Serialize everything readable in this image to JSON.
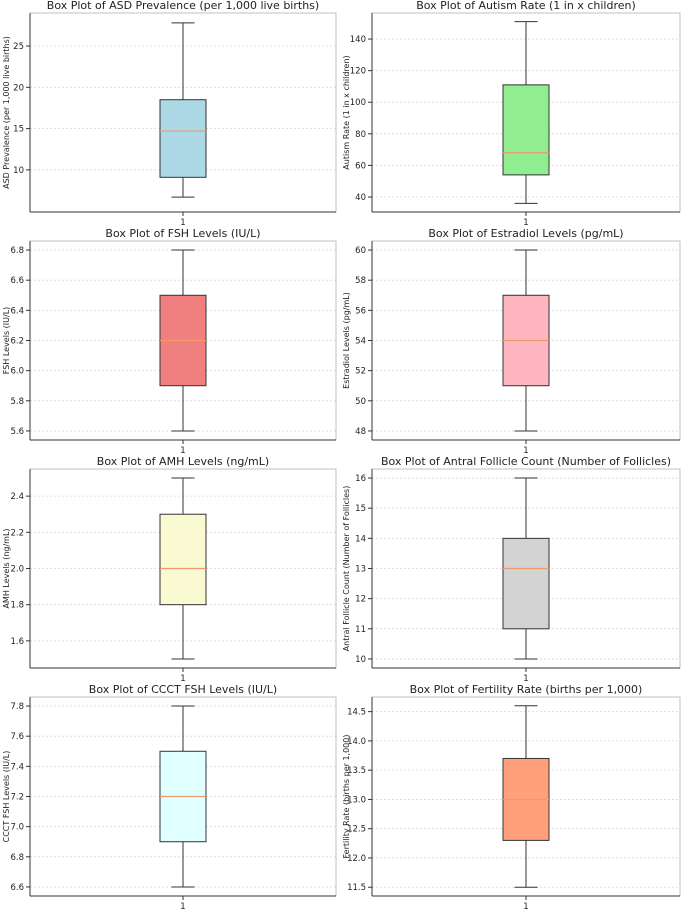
{
  "chart_data": [
    {
      "type": "box",
      "title": "Box Plot of ASD Prevalence (per 1,000 live births)",
      "ylabel": "ASD Prevalence (per 1,000 live births)",
      "xlabel": "",
      "xtick": "1",
      "ylim": [
        4.9,
        29.0
      ],
      "yticks": [
        10,
        15,
        20,
        25
      ],
      "tick_decimals": 0,
      "box": {
        "min": 6.7,
        "q1": 9.1,
        "median": 14.7,
        "q3": 18.5,
        "max": 27.8
      },
      "fill": "#add8e6",
      "median_color": "#f0986a",
      "grid": true
    },
    {
      "type": "box",
      "title": "Box Plot of Autism Rate (1 in x children)",
      "ylabel": "Autism Rate (1 in x children)",
      "xlabel": "",
      "xtick": "1",
      "ylim": [
        30.5,
        156.5
      ],
      "yticks": [
        40,
        60,
        80,
        100,
        120,
        140
      ],
      "tick_decimals": 0,
      "box": {
        "min": 36,
        "q1": 54,
        "median": 68,
        "q3": 111,
        "max": 151
      },
      "fill": "#90ee90",
      "median_color": "#f0986a",
      "grid": true
    },
    {
      "type": "box",
      "title": "Box Plot of FSH Levels (IU/L)",
      "ylabel": "FSH Levels (IU/L)",
      "xlabel": "",
      "xtick": "1",
      "ylim": [
        5.54,
        6.86
      ],
      "yticks": [
        5.6,
        5.8,
        6.0,
        6.2,
        6.4,
        6.6,
        6.8
      ],
      "tick_decimals": 1,
      "box": {
        "min": 5.6,
        "q1": 5.9,
        "median": 6.2,
        "q3": 6.5,
        "max": 6.8
      },
      "fill": "#f08080",
      "median_color": "#f0986a",
      "grid": true
    },
    {
      "type": "box",
      "title": "Box Plot of Estradiol Levels (pg/mL)",
      "ylabel": "Estradiol Levels (pg/mL)",
      "xlabel": "",
      "xtick": "1",
      "ylim": [
        47.4,
        60.6
      ],
      "yticks": [
        48,
        50,
        52,
        54,
        56,
        58,
        60
      ],
      "tick_decimals": 0,
      "box": {
        "min": 48,
        "q1": 51,
        "median": 54,
        "q3": 57,
        "max": 60
      },
      "fill": "#ffb6c1",
      "median_color": "#f0986a",
      "grid": true
    },
    {
      "type": "box",
      "title": "Box Plot of AMH Levels (ng/mL)",
      "ylabel": "AMH Levels (ng/mL)",
      "xlabel": "",
      "xtick": "1",
      "ylim": [
        1.45,
        2.55
      ],
      "yticks": [
        1.6,
        1.8,
        2.0,
        2.2,
        2.4
      ],
      "tick_decimals": 1,
      "box": {
        "min": 1.5,
        "q1": 1.8,
        "median": 2.0,
        "q3": 2.3,
        "max": 2.5
      },
      "fill": "#fafad2",
      "median_color": "#f0986a",
      "grid": true
    },
    {
      "type": "box",
      "title": "Box Plot of Antral Follicle Count (Number of Follicles)",
      "ylabel": "Antral Follicle Count (Number of Follicles)",
      "xlabel": "",
      "xtick": "1",
      "ylim": [
        9.7,
        16.3
      ],
      "yticks": [
        10,
        11,
        12,
        13,
        14,
        15,
        16
      ],
      "tick_decimals": 0,
      "box": {
        "min": 10,
        "q1": 11,
        "median": 13,
        "q3": 14,
        "max": 16
      },
      "fill": "#d3d3d3",
      "median_color": "#f0986a",
      "grid": true
    },
    {
      "type": "box",
      "title": "Box Plot of CCCT FSH Levels (IU/L)",
      "ylabel": "CCCT FSH Levels (IU/L)",
      "xlabel": "",
      "xtick": "1",
      "ylim": [
        6.54,
        7.86
      ],
      "yticks": [
        6.6,
        6.8,
        7.0,
        7.2,
        7.4,
        7.6,
        7.8
      ],
      "tick_decimals": 1,
      "box": {
        "min": 6.6,
        "q1": 6.9,
        "median": 7.2,
        "q3": 7.5,
        "max": 7.8
      },
      "fill": "#e0ffff",
      "median_color": "#f0986a",
      "grid": true
    },
    {
      "type": "box",
      "title": "Box Plot of Fertility Rate (births per 1,000)",
      "ylabel": "Fertility Rate (births per 1,000)",
      "xlabel": "",
      "xtick": "1",
      "ylim": [
        11.35,
        14.75
      ],
      "yticks": [
        11.5,
        12.0,
        12.5,
        13.0,
        13.5,
        14.0,
        14.5
      ],
      "tick_decimals": 1,
      "box": {
        "min": 11.5,
        "q1": 12.3,
        "median": 13.0,
        "q3": 13.7,
        "max": 14.6
      },
      "fill": "#ffa07a",
      "median_color": "#f0986a",
      "grid": true
    }
  ]
}
